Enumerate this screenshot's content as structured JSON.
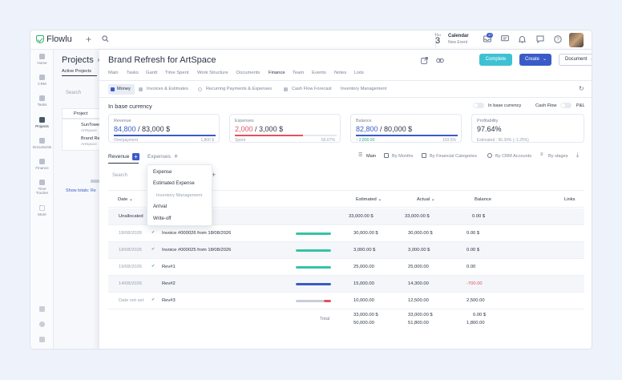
{
  "app": {
    "logo": "Flowlu"
  },
  "topbar": {
    "calendar_day_label": "Thu",
    "calendar_day_num": "3",
    "calendar_title": "Calendar",
    "calendar_sub": "New Event",
    "badge_count": "47"
  },
  "sidebar": {
    "items": [
      {
        "label": "Home"
      },
      {
        "label": "CRM"
      },
      {
        "label": "Tasks"
      },
      {
        "label": "Projects"
      },
      {
        "label": "Documents"
      },
      {
        "label": "Finance"
      },
      {
        "label": "Time Tracker"
      },
      {
        "label": "More"
      }
    ]
  },
  "projects_panel": {
    "title": "Projects",
    "tab": "Active Projects",
    "search_placeholder": "Search",
    "col_project": "Project",
    "rows": [
      {
        "name": "SunTowe",
        "sub": "ArtSpace"
      },
      {
        "name": "Brand Re",
        "sub": "ArtSpace"
      }
    ],
    "show_totals": "Show totals: Re"
  },
  "main": {
    "title": "Brand Refresh for ArtSpace",
    "complete_label": "Complete",
    "create_label": "Create",
    "document_label": "Document",
    "tabs": [
      "Main",
      "Tasks",
      "Gantt",
      "Time Spent",
      "Work Structure",
      "Documents",
      "Finance",
      "Team",
      "Events",
      "Notes",
      "Lists"
    ],
    "subtabs": [
      "Money",
      "Invoices & Estimates",
      "Recurring Payments & Expenses",
      "Cash Flow Forecast",
      "Inventory Management"
    ],
    "base_currency_title": "In base currency",
    "toggle_base_currency": "In base currency",
    "toggle_cash_flow": "Cash Flow",
    "toggle_pl": "P&L"
  },
  "cards": {
    "revenue": {
      "label": "Revenue",
      "value": "84,800",
      "total": "/ 83,000 $",
      "sub": "Overpayment",
      "pct": "1,800 $",
      "fill": 1.0,
      "color": "#3a5bc7"
    },
    "expenses": {
      "label": "Expenses",
      "value": "2,000",
      "total": "/ 3,000 $",
      "sub": "Spent",
      "pct": "66.67%",
      "fill": 0.6667,
      "color": "#e2525c"
    },
    "balance": {
      "label": "Balance",
      "value": "82,800",
      "total": "/ 80,000 $",
      "sub": "↑ 2,800.00",
      "pct": "103.5%",
      "fill": 1.0,
      "color": "#3a5bc7"
    },
    "profitability": {
      "label": "Profitability",
      "value": "97.64%",
      "sub": "Estimated : 96.39% (↑1.25%)"
    }
  },
  "section": {
    "tab_revenue": "Revenue",
    "tab_expenses": "Expenses",
    "view_main": "Main",
    "view_months": "By Months",
    "view_categories": "By Financial Categories",
    "view_crm": "By CRM Accounts",
    "view_stages": "By stages",
    "search_placeholder": "Search"
  },
  "dropdown": {
    "items": [
      "Expense",
      "Estimated Expense",
      "Inventory Management",
      "Arrival",
      "Write-off"
    ]
  },
  "table": {
    "headers": {
      "date": "Date",
      "estimated": "Estimated",
      "actual": "Actual",
      "balance": "Balance",
      "links": "Links"
    },
    "unallocated": {
      "label": "Unallocated",
      "estimated": "33,000.00 $",
      "actual": "33,000.00 $",
      "balance": "0.00 $"
    },
    "rows": [
      {
        "date": "18/08/2026",
        "name": "Invoice #000026 from 18/08/2026",
        "estimated": "30,000.00 $",
        "actual": "30,000.00 $",
        "balance": "0.00 $",
        "progress": 1.0,
        "color": "#35c3a4"
      },
      {
        "date": "18/08/2026",
        "name": "Invoice #000025 from 18/08/2026",
        "estimated": "3,000.00 $",
        "actual": "3,000.00 $",
        "balance": "0.00 $",
        "progress": 1.0,
        "color": "#35c3a4"
      },
      {
        "date": "19/08/2026",
        "name": "Rev#1",
        "estimated": "25,000.00",
        "actual": "25,000.00",
        "balance": "0.00",
        "progress": 1.0,
        "color": "#35c3a4"
      },
      {
        "date": "14/08/2026",
        "name": "Rev#2",
        "estimated": "15,000.00",
        "actual": "14,300.00",
        "balance": "-700.00",
        "progress": 1.0,
        "color": "#3a5bc7"
      },
      {
        "date": "Date not set",
        "name": "Rev#3",
        "estimated": "10,000.00",
        "actual": "12,500.00",
        "balance": "2,500.00",
        "progress": 0.8,
        "color": "#c8cdd8"
      }
    ],
    "total_label": "Total",
    "total_estimated_1": "33,000.00 $",
    "total_estimated_2": "50,000.00",
    "total_actual_1": "33,000.00 $",
    "total_actual_2": "51,800.00",
    "total_balance_1": "0.00 $",
    "total_balance_2": "1,800.00"
  }
}
